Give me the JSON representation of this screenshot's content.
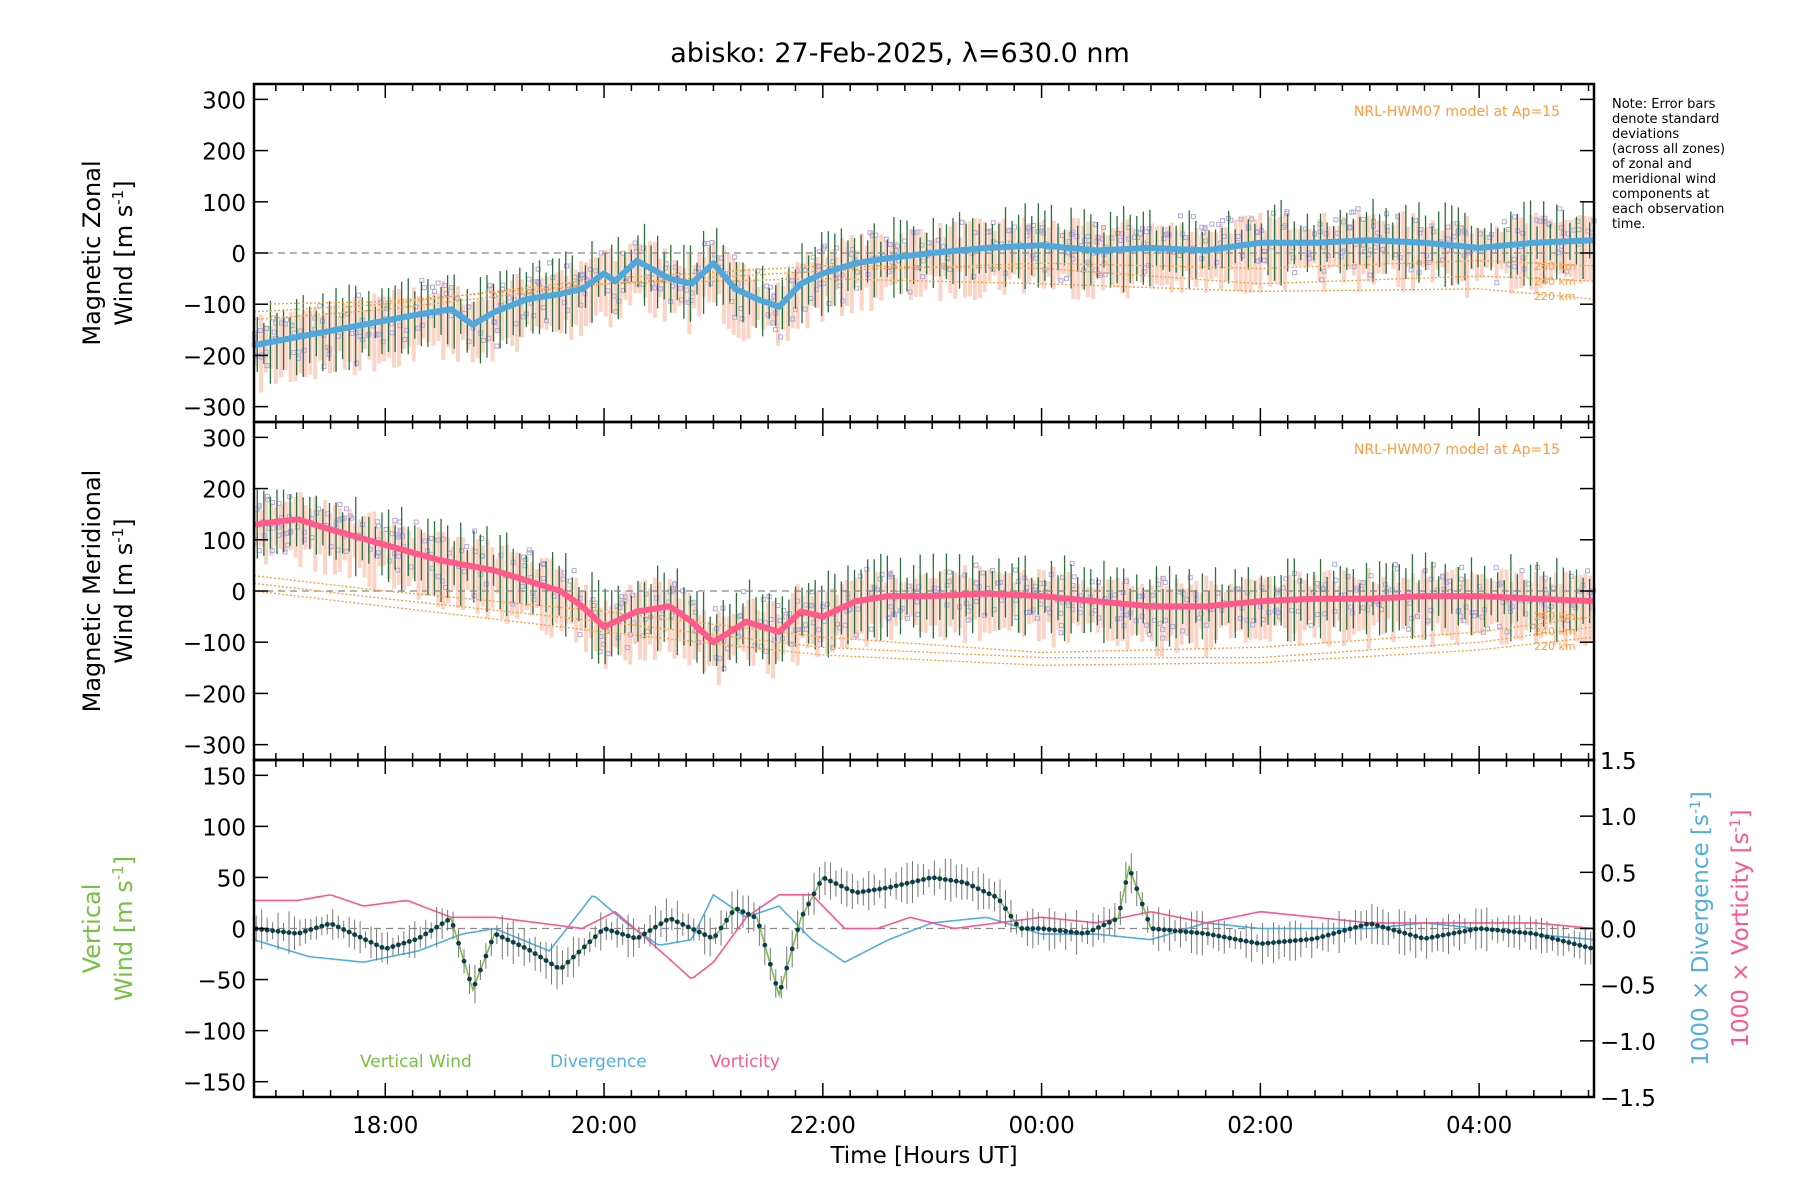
{
  "page": {
    "title": "abisko: 27-Feb-2025, λ=630.0 nm"
  },
  "note": {
    "lines": [
      "Note: Error bars",
      "denote standard",
      "deviations",
      "(across all zones)",
      "of zonal and",
      "meridional wind",
      "components at",
      "each observation",
      "time."
    ]
  },
  "colors": {
    "axis": "#000000",
    "zonal_mean": "#4fa8dc",
    "zonal_err": "#2a6e3a",
    "meridional_mean": "#ff5a8a",
    "meridional_err": "#2a6e3a",
    "lavender": "#b3a8dc",
    "salmon": "#f8b8a0",
    "model": "#ff9b3d",
    "vertical": "#77c043",
    "vertical_pts": "#0d3b4f",
    "divergence": "#52aee0",
    "vorticity": "#ff5590"
  },
  "x_axis": {
    "label": "Time [Hours UT]",
    "range_hours": [
      16.8,
      29.05
    ],
    "ticks": [
      {
        "v": 18,
        "label": "18:00"
      },
      {
        "v": 20,
        "label": "20:00"
      },
      {
        "v": 22,
        "label": "22:00"
      },
      {
        "v": 24,
        "label": "00:00"
      },
      {
        "v": 26,
        "label": "02:00"
      },
      {
        "v": 28,
        "label": "04:00"
      }
    ]
  },
  "chart_data": [
    {
      "type": "line",
      "panel": "zonal",
      "ylabel_line1": "Magnetic Zonal",
      "ylabel_line2": "Wind [m s",
      "ylabel_sup": "-1",
      "ylabel_close": "]",
      "ylim": [
        -330,
        330
      ],
      "yticks": [
        -300,
        -200,
        -100,
        0,
        100,
        200,
        300
      ],
      "model_label": "NRL-HWM07 model at Ap=15",
      "model_altitudes": [
        "260 km",
        "240 km",
        "220 km"
      ],
      "mean": {
        "x": [
          16.8,
          17.3,
          17.8,
          18.3,
          18.6,
          18.8,
          19.0,
          19.3,
          19.6,
          19.8,
          20.0,
          20.1,
          20.3,
          20.6,
          20.8,
          21.0,
          21.2,
          21.4,
          21.6,
          21.8,
          22.0,
          22.3,
          22.6,
          23.0,
          23.5,
          24.0,
          24.5,
          25.0,
          25.5,
          26.0,
          26.5,
          27.0,
          27.5,
          28.0,
          28.5,
          29.05
        ],
        "y": [
          -180,
          -160,
          -140,
          -120,
          -110,
          -140,
          -115,
          -90,
          -80,
          -70,
          -40,
          -55,
          -15,
          -50,
          -60,
          -20,
          -70,
          -90,
          -105,
          -60,
          -40,
          -20,
          -10,
          0,
          10,
          15,
          5,
          10,
          5,
          20,
          20,
          25,
          20,
          10,
          20,
          25
        ]
      },
      "spread": [
        -300,
        90
      ],
      "model": [
        {
          "altitude": "260 km",
          "x": [
            16.8,
            18,
            20,
            22,
            24,
            26,
            28,
            29.05
          ],
          "y": [
            -130,
            -110,
            -60,
            -35,
            -20,
            -30,
            -15,
            -25
          ]
        },
        {
          "altitude": "240 km",
          "x": [
            16.8,
            18,
            20,
            22,
            24,
            26,
            28,
            29.05
          ],
          "y": [
            -115,
            -100,
            -50,
            -25,
            -30,
            -60,
            -45,
            -55
          ]
        },
        {
          "altitude": "220 km",
          "x": [
            16.8,
            18,
            20,
            22,
            24,
            26,
            28,
            29.05
          ],
          "y": [
            -100,
            -95,
            -60,
            -50,
            -60,
            -75,
            -70,
            -90
          ]
        }
      ]
    },
    {
      "type": "line",
      "panel": "meridional",
      "ylabel_line1": "Magnetic Meridional",
      "ylabel_line2": "Wind [m s",
      "ylabel_sup": "-1",
      "ylabel_close": "]",
      "ylim": [
        -330,
        330
      ],
      "yticks": [
        -300,
        -200,
        -100,
        0,
        100,
        200,
        300
      ],
      "model_label": "NRL-HWM07 model at Ap=15",
      "model_altitudes": [
        "260 km",
        "240 km",
        "220 km"
      ],
      "mean": {
        "x": [
          16.8,
          17.2,
          17.5,
          18.0,
          18.5,
          19.0,
          19.3,
          19.6,
          19.8,
          20.0,
          20.3,
          20.6,
          20.8,
          21.0,
          21.3,
          21.6,
          21.8,
          22.0,
          22.3,
          22.6,
          23.0,
          23.5,
          24.0,
          24.5,
          25.0,
          25.5,
          26.0,
          26.5,
          27.0,
          27.5,
          28.0,
          28.5,
          29.05
        ],
        "y": [
          130,
          140,
          120,
          90,
          60,
          40,
          20,
          0,
          -30,
          -70,
          -40,
          -30,
          -60,
          -100,
          -60,
          -80,
          -40,
          -50,
          -20,
          -10,
          -10,
          -5,
          -10,
          -20,
          -30,
          -30,
          -20,
          -15,
          -15,
          -10,
          -10,
          -15,
          -20
        ]
      },
      "spread": [
        -170,
        200
      ],
      "model": [
        {
          "altitude": "260 km",
          "x": [
            16.8,
            18,
            20,
            22,
            24,
            26,
            28,
            29.05
          ],
          "y": [
            30,
            0,
            -40,
            -90,
            -120,
            -110,
            -80,
            -50
          ]
        },
        {
          "altitude": "240 km",
          "x": [
            16.8,
            18,
            20,
            22,
            24,
            26,
            28,
            29.05
          ],
          "y": [
            15,
            -15,
            -60,
            -110,
            -130,
            -130,
            -100,
            -70
          ]
        },
        {
          "altitude": "220 km",
          "x": [
            16.8,
            18,
            20,
            22,
            24,
            26,
            28,
            29.05
          ],
          "y": [
            0,
            -30,
            -80,
            -125,
            -145,
            -140,
            -115,
            -90
          ]
        }
      ]
    },
    {
      "type": "line",
      "panel": "vertical",
      "ylabel_line1": "Vertical",
      "ylabel_line2": "Wind [m s",
      "ylabel_sup": "-1",
      "ylabel_close": "]",
      "ylim": [
        -165,
        165
      ],
      "yticks": [
        -150,
        -100,
        -50,
        0,
        50,
        100,
        150
      ],
      "y2lim": [
        -1.5,
        1.5
      ],
      "y2ticks": [
        -1.5,
        -1.0,
        -0.5,
        0.0,
        0.5,
        1.0,
        1.5
      ],
      "y2ticklabels": [
        "−1.5",
        "−1.0",
        "−0.5",
        "0.0",
        "0.5",
        "1.0",
        "1.5"
      ],
      "y2label_div": "1000 × Divergence [s",
      "y2label_vort": "1000 × Vorticity [s",
      "y2label_sup": "-1",
      "y2label_close": "]",
      "legend": [
        "Vertical Wind",
        "Divergence",
        "Vorticity"
      ],
      "vertical_wind": {
        "x": [
          16.8,
          17.2,
          17.5,
          18.0,
          18.3,
          18.6,
          18.8,
          19.0,
          19.3,
          19.6,
          19.8,
          20.0,
          20.3,
          20.6,
          20.8,
          21.0,
          21.2,
          21.4,
          21.6,
          21.8,
          22.0,
          22.3,
          22.6,
          23.0,
          23.3,
          23.6,
          23.8,
          24.0,
          24.4,
          24.7,
          24.8,
          25.0,
          25.5,
          26.0,
          26.5,
          27.0,
          27.5,
          28.0,
          28.5,
          29.05
        ],
        "y": [
          0,
          -5,
          5,
          -20,
          -10,
          10,
          -60,
          -5,
          -20,
          -40,
          -20,
          0,
          -10,
          10,
          0,
          -10,
          20,
          10,
          -65,
          10,
          50,
          35,
          40,
          50,
          45,
          30,
          0,
          0,
          -5,
          10,
          60,
          0,
          -5,
          -15,
          -10,
          5,
          -10,
          0,
          -5,
          -20
        ]
      },
      "divergence": {
        "x": [
          16.8,
          17.3,
          17.8,
          18.3,
          18.7,
          19.0,
          19.5,
          19.9,
          20.2,
          20.5,
          20.8,
          21.0,
          21.3,
          21.6,
          21.9,
          22.2,
          22.6,
          23.0,
          23.5,
          24.0,
          24.5,
          25.0,
          25.5,
          26.0,
          26.5,
          27.0,
          27.5,
          28.0,
          28.5,
          29.05
        ],
        "y": [
          -0.1,
          -0.25,
          -0.3,
          -0.2,
          -0.05,
          0.0,
          -0.2,
          0.3,
          0.05,
          -0.15,
          -0.1,
          0.3,
          0.1,
          0.2,
          -0.1,
          -0.3,
          -0.1,
          0.05,
          0.1,
          -0.05,
          -0.05,
          -0.1,
          0.05,
          0.0,
          0.0,
          0.0,
          0.05,
          0.0,
          -0.05,
          -0.1
        ]
      },
      "vorticity": {
        "x": [
          16.8,
          17.2,
          17.5,
          17.8,
          18.2,
          18.6,
          19.0,
          19.4,
          19.8,
          20.1,
          20.4,
          20.8,
          21.0,
          21.3,
          21.6,
          21.9,
          22.2,
          22.5,
          22.8,
          23.2,
          23.6,
          24.0,
          24.5,
          25.0,
          25.5,
          26.0,
          26.5,
          27.0,
          27.5,
          28.0,
          28.5,
          29.05
        ],
        "y": [
          0.25,
          0.25,
          0.3,
          0.2,
          0.25,
          0.1,
          0.1,
          0.05,
          0.0,
          0.15,
          -0.1,
          -0.45,
          -0.3,
          0.1,
          0.3,
          0.3,
          0.0,
          0.0,
          0.1,
          0.0,
          0.05,
          0.1,
          0.05,
          0.15,
          0.05,
          0.15,
          0.1,
          0.05,
          0.05,
          0.05,
          0.05,
          0.0
        ]
      }
    }
  ]
}
